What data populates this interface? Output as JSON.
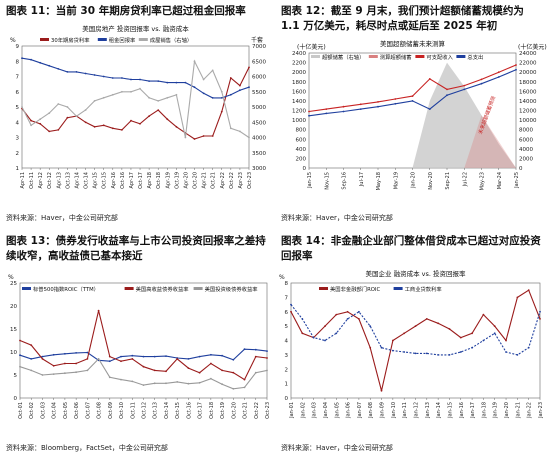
{
  "panels": [
    {
      "title": "图表 11：当前 30 年期房贷利率已超过租金回报率",
      "source": "资料来源：Haver，中金公司研究部",
      "chart_data": {
        "type": "line",
        "title": "美国房地产 投资回报率 vs. 融资成本",
        "ylabel_left": "%",
        "ylabel_right": "千套",
        "ylim": [
          1,
          9
        ],
        "yticks": [
          1,
          2,
          3,
          4,
          5,
          6,
          7,
          8,
          9
        ],
        "ylim_right": [
          3000,
          7000
        ],
        "yticks_right": [
          3000,
          3500,
          4000,
          4500,
          5000,
          5500,
          6000,
          6500,
          7000
        ],
        "xlabels": [
          "Apr-11",
          "Oct-11",
          "Apr-12",
          "Oct-12",
          "Apr-13",
          "Oct-13",
          "Apr-14",
          "Oct-14",
          "Apr-15",
          "Oct-15",
          "Apr-16",
          "Oct-16",
          "Apr-17",
          "Oct-17",
          "Apr-18",
          "Oct-18",
          "Apr-19",
          "Oct-19",
          "Apr-20",
          "Oct-20",
          "Apr-21",
          "Oct-21",
          "Apr-22",
          "Oct-22",
          "Apr-23",
          "Oct-23"
        ],
        "x": [
          0,
          1,
          2,
          3,
          4,
          5,
          6,
          7,
          8,
          9,
          10,
          11,
          12,
          13,
          14,
          15,
          16,
          17,
          18,
          19,
          20,
          21,
          22,
          23,
          24,
          25
        ],
        "legend_placement": "top",
        "series": [
          {
            "name": "30年期房贷利率",
            "color": "#9b1c1c",
            "axis": "left",
            "values": [
              4.9,
              4.1,
              3.9,
              3.4,
              3.5,
              4.3,
              4.4,
              4.0,
              3.7,
              3.8,
              3.6,
              3.5,
              4.1,
              3.9,
              4.4,
              4.8,
              4.2,
              3.7,
              3.3,
              2.9,
              3.1,
              3.1,
              4.7,
              6.9,
              6.4,
              7.6
            ]
          },
          {
            "name": "租金回报率",
            "color": "#1f3f9e",
            "axis": "left",
            "values": [
              8.2,
              8.1,
              7.9,
              7.7,
              7.5,
              7.3,
              7.3,
              7.2,
              7.1,
              7.0,
              6.9,
              6.9,
              6.8,
              6.8,
              6.7,
              6.7,
              6.6,
              6.6,
              6.6,
              6.3,
              5.9,
              5.6,
              5.6,
              5.8,
              6.1,
              6.3
            ]
          },
          {
            "name": "成屋销售（右轴）",
            "color": "#aaaaaa",
            "axis": "right",
            "values": [
              5000,
              4400,
              4600,
              4800,
              5100,
              5000,
              4700,
              4900,
              5200,
              5300,
              5400,
              5500,
              5500,
              5600,
              5300,
              5200,
              5300,
              5400,
              4000,
              6500,
              5900,
              6200,
              5500,
              4300,
              4200,
              4000
            ]
          }
        ]
      }
    },
    {
      "title": "图表 12：截至 9 月末，我们预计超额储蓄规模约为 1.1 万亿美元，耗尽时点或延后至 2025 年初",
      "source": "资料来源：Haver，中金公司研究部",
      "chart_data": {
        "type": "line",
        "title": "美国超额储蓄未来测算",
        "ylabel_left": "(十亿美元)",
        "ylabel_right": "(十亿美元)",
        "ylim": [
          0,
          2400
        ],
        "yticks": [
          0,
          200,
          400,
          600,
          800,
          1000,
          1200,
          1400,
          1600,
          1800,
          2000,
          2200,
          2400
        ],
        "ylim_right": [
          0,
          24000
        ],
        "yticks_right": [
          0,
          2000,
          4000,
          6000,
          8000,
          10000,
          12000,
          14000,
          16000,
          18000,
          20000,
          22000,
          24000
        ],
        "xlabels": [
          "Jan-15",
          "Nov-15",
          "Sep-16",
          "Jul-17",
          "May-18",
          "Mar-19",
          "Jan-20",
          "Nov-20",
          "Sep-21",
          "Jul-22",
          "May-23",
          "Mar-24",
          "Jan-25"
        ],
        "x": [
          0,
          1,
          2,
          3,
          4,
          5,
          6,
          7,
          8,
          9,
          10,
          11,
          12
        ],
        "legend_placement": "top",
        "annotation": "未来超额储蓄预测",
        "series": [
          {
            "name": "超额储蓄（右轴）",
            "color": "#c8c8c8",
            "axis": "right",
            "values": [
              0,
              0,
              0,
              0,
              0,
              0,
              0,
              14000,
              22000,
              17000,
              11000,
              5000,
              0
            ]
          },
          {
            "name": "测算超额储蓄",
            "color": "#d98080",
            "axis": "right",
            "values": [
              0,
              0,
              0,
              0,
              0,
              0,
              0,
              0,
              0,
              0,
              11000,
              5500,
              0
            ]
          },
          {
            "name": "可支配收入",
            "color": "#c82323",
            "axis": "left",
            "values": [
              1180,
              1230,
              1280,
              1330,
              1380,
              1440,
              1500,
              1860,
              1640,
              1720,
              1850,
              2000,
              2150
            ]
          },
          {
            "name": "总支出",
            "color": "#1f3f9e",
            "axis": "left",
            "values": [
              1090,
              1140,
              1180,
              1230,
              1280,
              1340,
              1400,
              1230,
              1520,
              1640,
              1760,
              1900,
              2050
            ]
          }
        ]
      }
    },
    {
      "title": "图表 13：债券发行收益率与上市公司投资回报率之差持续收窄，高收益债已基本接近",
      "source": "资料来源：Bloomberg，FactSet，中金公司研究部",
      "chart_data": {
        "type": "line",
        "ylabel_left": "%",
        "ylim": [
          0,
          25
        ],
        "yticks": [
          0,
          5,
          10,
          15,
          20,
          25
        ],
        "xlabels": [
          "Oct-01",
          "Oct-02",
          "Oct-03",
          "Oct-04",
          "Oct-05",
          "Oct-06",
          "Oct-07",
          "Oct-08",
          "Oct-09",
          "Oct-10",
          "Oct-11",
          "Oct-12",
          "Oct-13",
          "Oct-14",
          "Oct-15",
          "Oct-16",
          "Oct-17",
          "Oct-18",
          "Oct-19",
          "Oct-20",
          "Oct-21",
          "Oct-22",
          "Oct-23"
        ],
        "x": [
          0,
          1,
          2,
          3,
          4,
          5,
          6,
          7,
          8,
          9,
          10,
          11,
          12,
          13,
          14,
          15,
          16,
          17,
          18,
          19,
          20,
          21,
          22
        ],
        "legend_placement": "top",
        "series": [
          {
            "name": "标普500指数ROIC（TTM）",
            "color": "#1f3f9e",
            "axis": "left",
            "values": [
              9.3,
              8.5,
              9.0,
              9.4,
              9.6,
              9.8,
              9.9,
              8.2,
              8.0,
              9.0,
              9.2,
              9.0,
              9.0,
              9.1,
              8.7,
              8.5,
              9.0,
              9.4,
              9.2,
              8.3,
              10.6,
              10.5,
              10.2
            ]
          },
          {
            "name": "美国高收益债券收益率",
            "color": "#9b1c1c",
            "axis": "left",
            "values": [
              12.5,
              11.5,
              8.5,
              7.0,
              7.5,
              7.5,
              8.5,
              19.0,
              9.0,
              8.0,
              8.5,
              6.8,
              6.0,
              5.8,
              8.5,
              6.5,
              5.5,
              7.5,
              6.0,
              5.5,
              4.0,
              9.0,
              8.7
            ]
          },
          {
            "name": "美国投资级债券收益率",
            "color": "#999999",
            "axis": "left",
            "values": [
              6.8,
              6.0,
              5.0,
              5.2,
              5.4,
              5.6,
              6.0,
              8.5,
              4.5,
              4.0,
              3.6,
              2.8,
              3.2,
              3.2,
              3.5,
              3.1,
              3.3,
              4.2,
              3.0,
              2.0,
              2.3,
              5.5,
              6.0
            ]
          }
        ]
      }
    },
    {
      "title": "图表 14：非金融企业部门整体借贷成本已超过对应投资回报率",
      "source": "资料来源：Haver，中金公司研究部",
      "chart_data": {
        "type": "line",
        "title": "美国企业 融资成本 vs. 投资回报率",
        "ylabel_left": "%",
        "ylim": [
          0,
          8
        ],
        "yticks": [
          0,
          1,
          2,
          3,
          4,
          5,
          6,
          7,
          8
        ],
        "xlabels": [
          "Jan-01",
          "Jan-02",
          "Jan-03",
          "Jan-04",
          "Jan-05",
          "Jan-06",
          "Jan-07",
          "Jan-08",
          "Jan-09",
          "Jan-10",
          "Jan-11",
          "Jan-12",
          "Jan-13",
          "Jan-14",
          "Jan-15",
          "Jan-16",
          "Jan-17",
          "Jan-18",
          "Jan-19",
          "Jan-20",
          "Jan-21",
          "Jan-22",
          "Jan-23"
        ],
        "x": [
          0,
          1,
          2,
          3,
          4,
          5,
          6,
          7,
          8,
          9,
          10,
          11,
          12,
          13,
          14,
          15,
          16,
          17,
          18,
          19,
          20,
          21,
          22
        ],
        "legend_placement": "top",
        "series": [
          {
            "name": "美国非金融部门ROIC",
            "color": "#9b1c1c",
            "axis": "left",
            "values": [
              6.0,
              4.5,
              4.2,
              5.0,
              5.8,
              6.0,
              5.5,
              3.5,
              0.5,
              4.0,
              4.5,
              5.0,
              5.5,
              5.2,
              4.8,
              4.2,
              4.5,
              5.8,
              5.0,
              4.0,
              7.0,
              7.5,
              5.5
            ]
          },
          {
            "name": "工商业贷款利率",
            "color": "#1f3f9e",
            "axis": "left",
            "values": [
              6.5,
              5.5,
              4.2,
              4.0,
              4.5,
              5.5,
              6.0,
              5.0,
              3.5,
              3.3,
              3.2,
              3.1,
              3.1,
              3.0,
              3.0,
              3.2,
              3.5,
              4.0,
              4.5,
              3.2,
              3.0,
              3.5,
              6.0
            ]
          }
        ]
      }
    }
  ]
}
